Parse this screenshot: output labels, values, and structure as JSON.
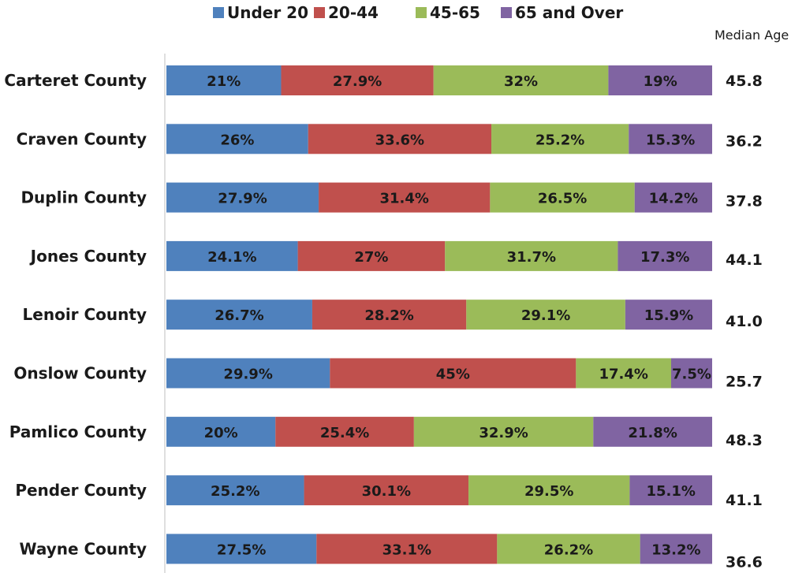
{
  "chart_data": {
    "type": "bar",
    "orientation": "horizontal",
    "stacked": true,
    "legend_position": "top",
    "grid": false,
    "categories": [
      "Carteret County",
      "Craven County",
      "Duplin County",
      "Jones County",
      "Lenoir County",
      "Onslow County",
      "Pamlico County",
      "Pender County",
      "Wayne County"
    ],
    "series": [
      {
        "name": "Under 20",
        "color": "#4F81BD",
        "values": [
          21,
          26,
          27.9,
          24.1,
          26.7,
          29.9,
          20,
          25.2,
          27.5
        ],
        "labels": [
          "21%",
          "26%",
          "27.9%",
          "24.1%",
          "26.7%",
          "29.9%",
          "20%",
          "25.2%",
          "27.5%"
        ]
      },
      {
        "name": "20-44",
        "color": "#C0504D",
        "values": [
          27.9,
          33.6,
          31.4,
          27,
          28.2,
          45,
          25.4,
          30.1,
          33.1
        ],
        "labels": [
          "27.9%",
          "33.6%",
          "31.4%",
          "27%",
          "28.2%",
          "45%",
          "25.4%",
          "30.1%",
          "33.1%"
        ]
      },
      {
        "name": "45-65",
        "color": "#9BBB59",
        "values": [
          32,
          25.2,
          26.5,
          31.7,
          29.1,
          17.4,
          32.9,
          29.5,
          26.2
        ],
        "labels": [
          "32%",
          "25.2%",
          "26.5%",
          "31.7%",
          "29.1%",
          "17.4%",
          "32.9%",
          "29.5%",
          "26.2%"
        ]
      },
      {
        "name": "65 and Over",
        "color": "#8064A2",
        "values": [
          19,
          15.3,
          14.2,
          17.3,
          15.9,
          7.5,
          21.8,
          15.1,
          13.2
        ],
        "labels": [
          "19%",
          "15.3%",
          "14.2%",
          "17.3%",
          "15.9%",
          "7.5%",
          "21.8%",
          "15.1%",
          "13.2%"
        ]
      }
    ],
    "median_age": {
      "title": "Median Age",
      "values": [
        "45.8",
        "36.2",
        "37.8",
        "44.1",
        "41.0",
        "25.7",
        "48.3",
        "41.1",
        "36.6"
      ]
    }
  }
}
